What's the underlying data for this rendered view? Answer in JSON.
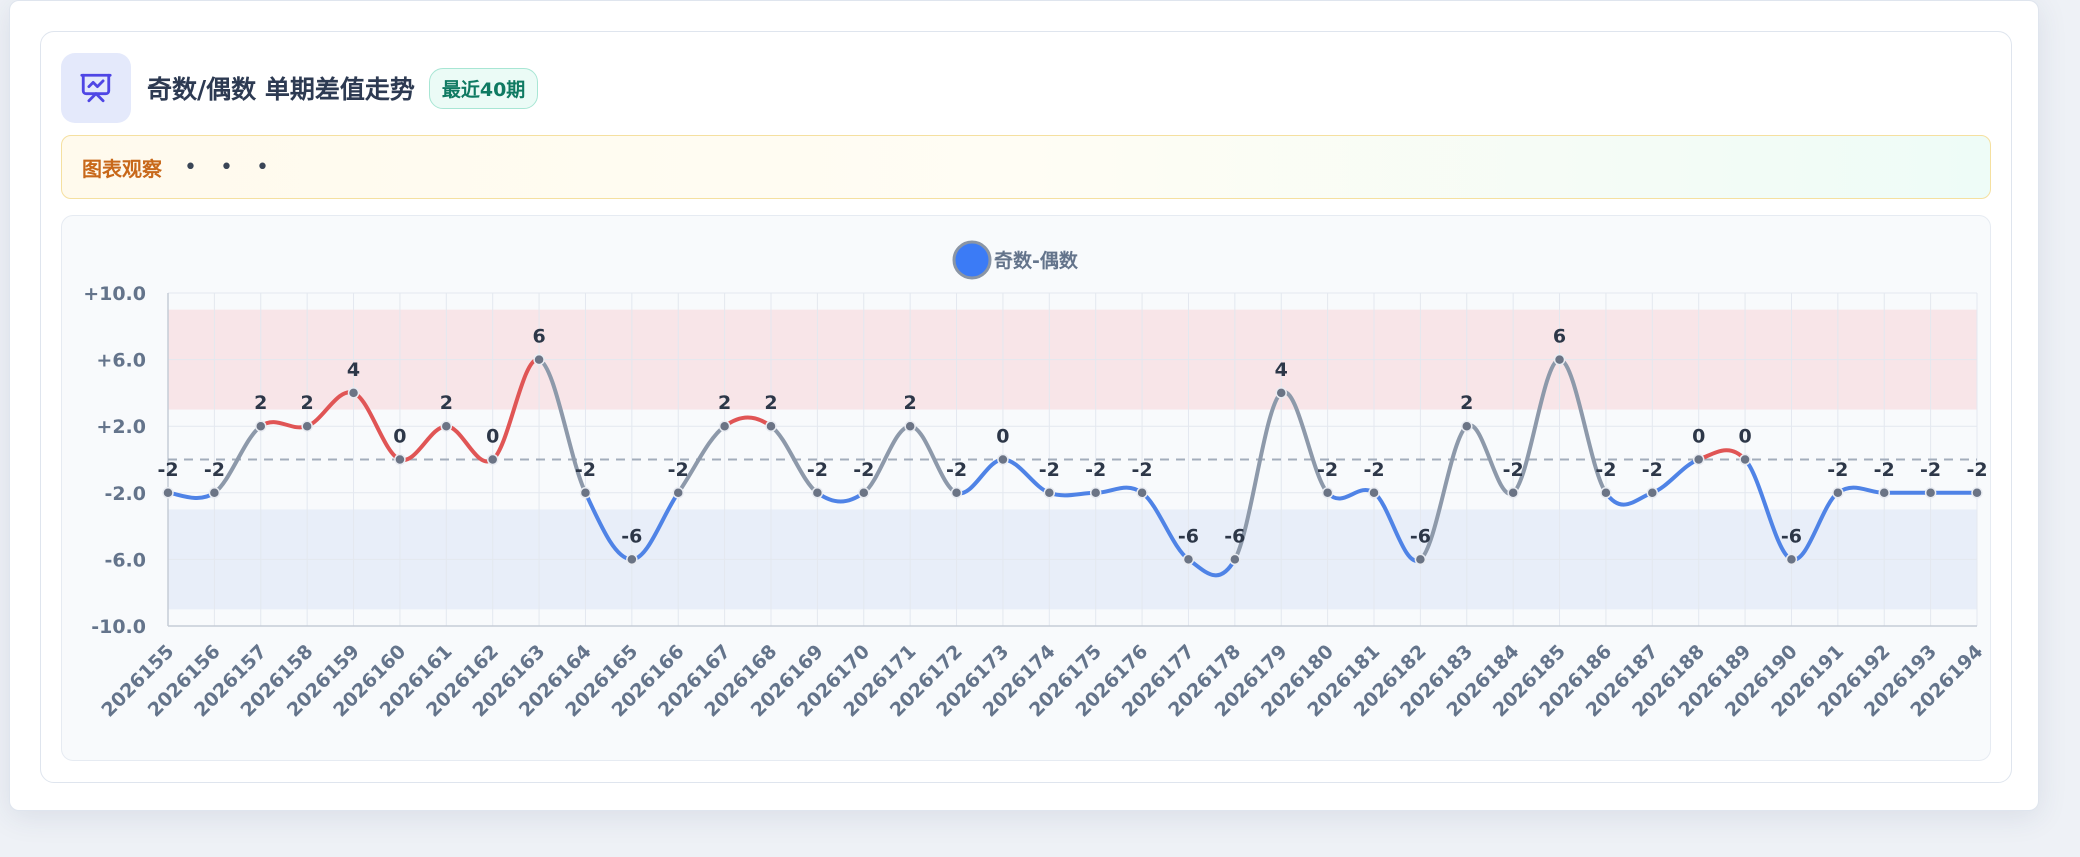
{
  "header": {
    "title": "奇数/偶数 单期差值走势",
    "badge": "最近40期"
  },
  "observation": {
    "label": "图表观察",
    "dots": "• • •"
  },
  "colors": {
    "positive": "#e05555",
    "negative": "#4f83e6",
    "neutral": "#8d99aa",
    "legend": "#3b7bf6",
    "topBand": "#f8e5e8",
    "bottomBand": "#e8eef9"
  },
  "chart_data": {
    "type": "line",
    "legend": [
      "奇数-偶数"
    ],
    "ylim": [
      -10,
      10
    ],
    "yticks": [
      10,
      6,
      2,
      -2,
      -6,
      -10
    ],
    "ytick_labels": [
      "+10.0",
      "+6.0",
      "+2.0",
      "-2.0",
      "-6.0",
      "-10.0"
    ],
    "bands": [
      {
        "from": 3,
        "to": 9,
        "color": "#f8e5e8"
      },
      {
        "from": -9,
        "to": -3,
        "color": "#e8eef9"
      }
    ],
    "reference_line": 0,
    "categories": [
      "2026155",
      "2026156",
      "2026157",
      "2026158",
      "2026159",
      "2026160",
      "2026161",
      "2026162",
      "2026163",
      "2026164",
      "2026165",
      "2026166",
      "2026167",
      "2026168",
      "2026169",
      "2026170",
      "2026171",
      "2026172",
      "2026173",
      "2026174",
      "2026175",
      "2026176",
      "2026177",
      "2026178",
      "2026179",
      "2026180",
      "2026181",
      "2026182",
      "2026183",
      "2026184",
      "2026185",
      "2026186",
      "2026187",
      "2026188",
      "2026189",
      "2026190",
      "2026191",
      "2026192",
      "2026193",
      "2026194"
    ],
    "series": [
      {
        "name": "奇数-偶数",
        "values": [
          -2,
          -2,
          2,
          2,
          4,
          0,
          2,
          0,
          6,
          -2,
          -6,
          -2,
          2,
          2,
          -2,
          -2,
          2,
          -2,
          0,
          -2,
          -2,
          -2,
          -6,
          -6,
          4,
          -2,
          -2,
          -6,
          2,
          -2,
          6,
          -2,
          -2,
          0,
          0,
          -6,
          -2,
          -2,
          -2,
          -2
        ]
      }
    ]
  }
}
